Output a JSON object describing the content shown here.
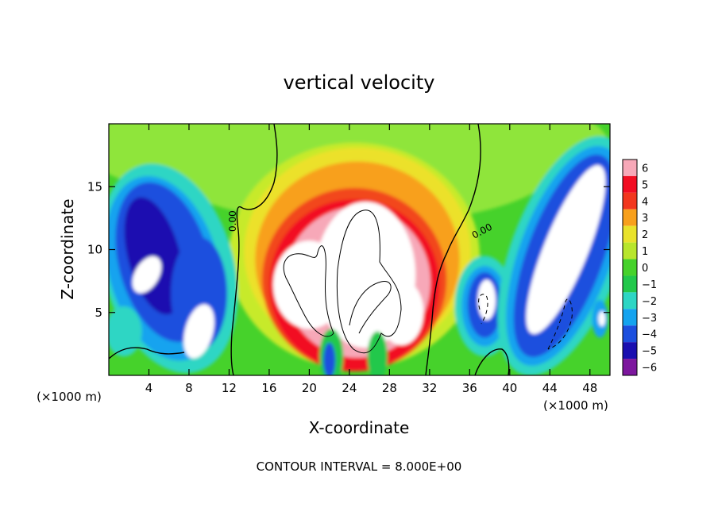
{
  "chart_data": {
    "type": "heatmap",
    "title": "vertical velocity",
    "xlabel": "X-coordinate",
    "ylabel": "Z-coordinate",
    "x_unit_left": "(×1000 m)",
    "x_unit_right": "(×1000 m)",
    "xlim": [
      0,
      50
    ],
    "ylim": [
      0,
      20
    ],
    "x_ticks": [
      4,
      8,
      12,
      16,
      20,
      24,
      28,
      32,
      36,
      40,
      44,
      48
    ],
    "x_tick_labels": [
      "4",
      "8",
      "12",
      "16",
      "20",
      "24",
      "28",
      "32",
      "36",
      "40",
      "44",
      "48"
    ],
    "y_ticks": [
      5,
      10,
      15
    ],
    "y_tick_labels": [
      "5",
      "10",
      "15"
    ],
    "colorbar": {
      "levels": [
        "6",
        "5",
        "4",
        "3",
        "2",
        "1",
        "0",
        "−1",
        "−2",
        "−3",
        "−4",
        "−5",
        "−6"
      ],
      "colors": [
        "#f7a8b8",
        "#f20d22",
        "#f2371e",
        "#f8a01c",
        "#e9e22b",
        "#b8e62c",
        "#46d22b",
        "#22c84b",
        "#2dd6c4",
        "#14a3ef",
        "#1c4fde",
        "#1a0fb0",
        "#7d179e"
      ],
      "range": [
        -6,
        6
      ]
    },
    "contour_labels": [
      "0.00",
      "0.00"
    ],
    "contour_interval_text": "CONTOUR INTERVAL = 8.000E+00",
    "features": [
      {
        "kind": "updraft-core",
        "x": 25.5,
        "z": 8.5,
        "w": 8.5
      },
      {
        "kind": "updraft-core",
        "x": 19.5,
        "z": 7,
        "w": 8
      },
      {
        "kind": "updraft-plume",
        "x": 25,
        "z": 12,
        "w": 5
      },
      {
        "kind": "downdraft-core",
        "x": 45.5,
        "z": 9,
        "w": -8
      },
      {
        "kind": "downdraft-core",
        "x": 9,
        "z": 5,
        "w": -7
      },
      {
        "kind": "downdraft-core",
        "x": 37.5,
        "z": 6,
        "w": -7
      },
      {
        "kind": "downdraft-core",
        "x": 3.5,
        "z": 8,
        "w": -7
      }
    ]
  }
}
